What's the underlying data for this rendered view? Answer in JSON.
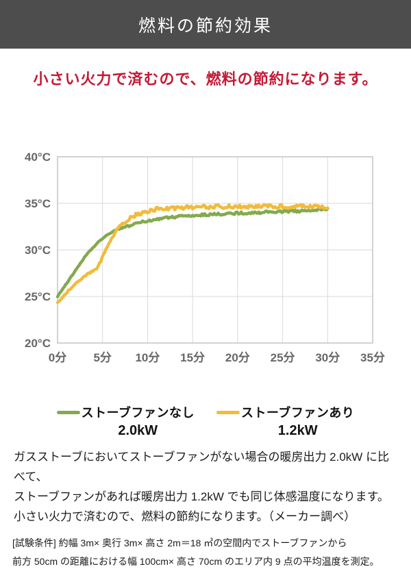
{
  "header": {
    "title": "燃料の節約効果"
  },
  "headline": {
    "text": "小さい火力で済むので、燃料の節約になります。",
    "color": "#c41a35"
  },
  "chart_data": {
    "type": "line",
    "title": "",
    "xlabel": "",
    "ylabel": "",
    "x_unit": "分",
    "y_unit": "°C",
    "xlim": [
      0,
      35
    ],
    "ylim": [
      20,
      40
    ],
    "grid": true,
    "legend_position": "bottom",
    "appearance": {
      "grid_color": "#d9d9d9",
      "axis_color": "#b5b5b5",
      "tick_color": "#666666"
    },
    "x_ticks": [
      {
        "value": 0,
        "label": "0分"
      },
      {
        "value": 5,
        "label": "5分"
      },
      {
        "value": 10,
        "label": "10分"
      },
      {
        "value": 15,
        "label": "15分"
      },
      {
        "value": 20,
        "label": "20分"
      },
      {
        "value": 25,
        "label": "25分"
      },
      {
        "value": 30,
        "label": "30分"
      },
      {
        "value": 35,
        "label": "35分"
      }
    ],
    "y_ticks": [
      {
        "value": 40,
        "label": "40°C"
      },
      {
        "value": 35,
        "label": "35°C"
      },
      {
        "value": 30,
        "label": "30°C"
      },
      {
        "value": 25,
        "label": "25°C"
      },
      {
        "value": 20,
        "label": "20°C"
      }
    ],
    "series": [
      {
        "name": "ストーブファンなし",
        "power": "2.0kW",
        "color": "#83aa4e",
        "noise": 0.13,
        "keypoints": [
          [
            0,
            25.0
          ],
          [
            0.5,
            25.7
          ],
          [
            1,
            26.4
          ],
          [
            1.5,
            27.1
          ],
          [
            2,
            27.8
          ],
          [
            2.5,
            28.5
          ],
          [
            3,
            29.2
          ],
          [
            3.5,
            29.8
          ],
          [
            4,
            30.3
          ],
          [
            4.5,
            30.8
          ],
          [
            5,
            31.2
          ],
          [
            5.5,
            31.6
          ],
          [
            6,
            31.9
          ],
          [
            6.5,
            32.1
          ],
          [
            7,
            32.3
          ],
          [
            8,
            32.6
          ],
          [
            9,
            32.9
          ],
          [
            10,
            33.1
          ],
          [
            11,
            33.3
          ],
          [
            12,
            33.45
          ],
          [
            13,
            33.55
          ],
          [
            14,
            33.65
          ],
          [
            15,
            33.7
          ],
          [
            16,
            33.75
          ],
          [
            17,
            33.8
          ],
          [
            18,
            33.85
          ],
          [
            19,
            33.9
          ],
          [
            20,
            33.95
          ],
          [
            22,
            34.0
          ],
          [
            24,
            34.1
          ],
          [
            26,
            34.15
          ],
          [
            28,
            34.2
          ],
          [
            29,
            34.3
          ],
          [
            30,
            34.4
          ]
        ]
      },
      {
        "name": "ストーブファンあり",
        "power": "1.2kW",
        "color": "#f1bb3b",
        "noise": 0.22,
        "keypoints": [
          [
            0,
            24.3
          ],
          [
            0.5,
            24.9
          ],
          [
            1,
            25.4
          ],
          [
            1.5,
            25.9
          ],
          [
            2,
            26.4
          ],
          [
            2.5,
            26.8
          ],
          [
            3,
            27.2
          ],
          [
            3.5,
            27.5
          ],
          [
            4,
            27.8
          ],
          [
            4.4,
            28.0
          ],
          [
            4.8,
            28.8
          ],
          [
            5.2,
            29.7
          ],
          [
            5.6,
            30.5
          ],
          [
            6,
            31.2
          ],
          [
            6.5,
            32.0
          ],
          [
            7,
            32.6
          ],
          [
            7.5,
            33.0
          ],
          [
            8,
            33.4
          ],
          [
            8.5,
            33.65
          ],
          [
            9,
            33.9
          ],
          [
            9.5,
            34.05
          ],
          [
            10,
            34.2
          ],
          [
            11,
            34.35
          ],
          [
            12,
            34.45
          ],
          [
            13,
            34.5
          ],
          [
            15,
            34.6
          ],
          [
            18,
            34.65
          ],
          [
            20,
            34.65
          ],
          [
            25,
            34.7
          ],
          [
            30,
            34.65
          ]
        ]
      }
    ]
  },
  "description": {
    "lines": [
      "ガスストーブにおいてストーブファンがない場合の暖房出力 2.0kW に比べて、",
      "ストーブファンがあれば暖房出力 1.2kW でも同じ体感温度になります。",
      "小さい火力で済むので、燃料の節約になります。（メーカー調べ）"
    ]
  },
  "footnote": {
    "lines": [
      "[試験条件] 約幅 3m× 奥行 3m× 高さ 2m＝18 ㎥の空間内でストーブファンから",
      "前方 50cm の距離における幅 100cm× 高さ 70cm のエリア内 9 点の平均温度を測定。"
    ]
  }
}
